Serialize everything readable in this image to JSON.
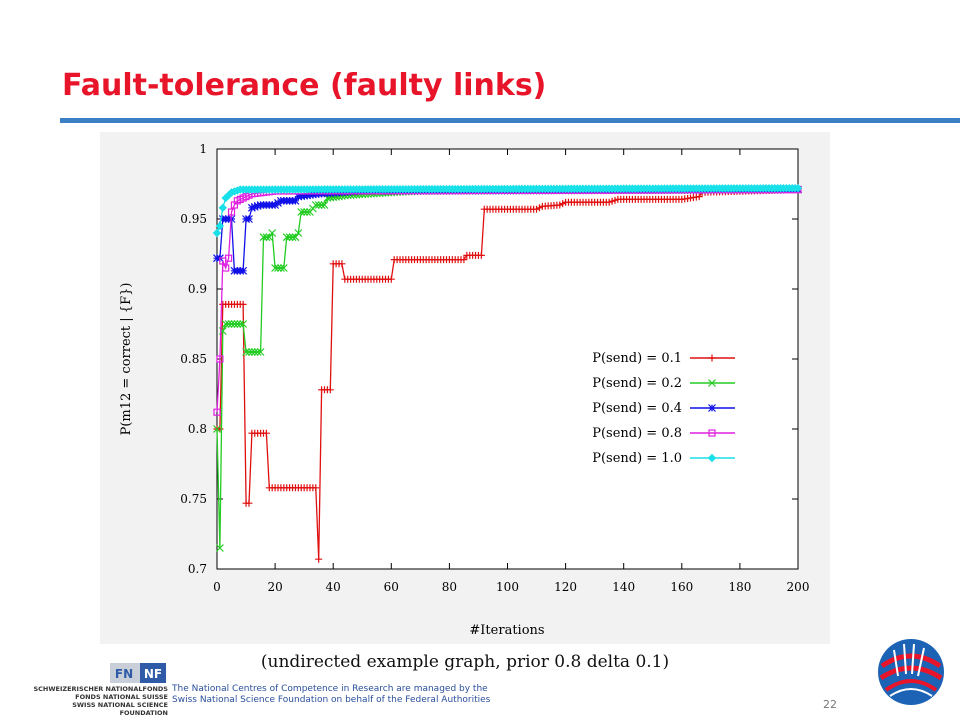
{
  "slide": {
    "title": "Fault-tolerance (faulty links)",
    "caption": "(undirected example graph, prior 0.8 delta 0.1)",
    "page_number": "22",
    "footer_line1": "The National Centres of Competence in Research are managed by the",
    "footer_line2": "Swiss National Science Foundation on behalf of the Federal Authorities",
    "foundation_lines": [
      "Schweizerischer Nationalfonds",
      "Fonds national suisse",
      "Swiss National Science Foundation"
    ],
    "logo_text_left": "FN",
    "logo_text_right": "NF",
    "accent_color": "#e8152a",
    "rule_color": "#3b7fc4"
  },
  "chart_data": {
    "type": "line",
    "xlabel": "#Iterations",
    "ylabel": "P(m12 = correct | {F})",
    "xlim": [
      0,
      200
    ],
    "ylim": [
      0.7,
      1.0
    ],
    "x_ticks": [
      "0",
      "20",
      "40",
      "60",
      "80",
      "100",
      "120",
      "140",
      "160",
      "180",
      "200"
    ],
    "y_ticks": [
      "0.7",
      "0.75",
      "0.8",
      "0.85",
      "0.9",
      "0.95",
      "1"
    ],
    "legend_position": "center-right",
    "grid": false,
    "series": [
      {
        "name": "P(send) = 0.1",
        "color": "#e01010",
        "marker": "+",
        "points": [
          [
            0,
            0.8
          ],
          [
            1,
            0.8
          ],
          [
            2,
            0.889
          ],
          [
            3,
            0.889
          ],
          [
            9,
            0.889
          ],
          [
            10,
            0.747
          ],
          [
            11,
            0.747
          ],
          [
            12,
            0.797
          ],
          [
            13,
            0.797
          ],
          [
            17,
            0.797
          ],
          [
            18,
            0.758
          ],
          [
            19,
            0.758
          ],
          [
            34,
            0.758
          ],
          [
            35,
            0.707
          ],
          [
            36,
            0.828
          ],
          [
            37,
            0.828
          ],
          [
            39,
            0.828
          ],
          [
            40,
            0.918
          ],
          [
            41,
            0.918
          ],
          [
            43,
            0.918
          ],
          [
            44,
            0.907
          ],
          [
            45,
            0.907
          ],
          [
            60,
            0.907
          ],
          [
            61,
            0.921
          ],
          [
            62,
            0.921
          ],
          [
            85,
            0.921
          ],
          [
            86,
            0.924
          ],
          [
            91,
            0.924
          ],
          [
            92,
            0.957
          ],
          [
            94,
            0.957
          ],
          [
            110,
            0.957
          ],
          [
            112,
            0.959
          ],
          [
            118,
            0.96
          ],
          [
            120,
            0.962
          ],
          [
            135,
            0.962
          ],
          [
            138,
            0.964
          ],
          [
            160,
            0.964
          ],
          [
            166,
            0.966
          ],
          [
            167,
            0.969
          ],
          [
            200,
            0.971
          ]
        ]
      },
      {
        "name": "P(send) = 0.2",
        "color": "#22cc22",
        "marker": "x",
        "points": [
          [
            0,
            0.8
          ],
          [
            1,
            0.715
          ],
          [
            2,
            0.87
          ],
          [
            3,
            0.875
          ],
          [
            9,
            0.875
          ],
          [
            10,
            0.855
          ],
          [
            15,
            0.855
          ],
          [
            16,
            0.937
          ],
          [
            18,
            0.937
          ],
          [
            19,
            0.94
          ],
          [
            20,
            0.915
          ],
          [
            23,
            0.915
          ],
          [
            24,
            0.937
          ],
          [
            27,
            0.937
          ],
          [
            28,
            0.94
          ],
          [
            29,
            0.955
          ],
          [
            32,
            0.955
          ],
          [
            34,
            0.96
          ],
          [
            37,
            0.96
          ],
          [
            38,
            0.965
          ],
          [
            45,
            0.967
          ],
          [
            60,
            0.969
          ],
          [
            70,
            0.97
          ],
          [
            200,
            0.971
          ]
        ]
      },
      {
        "name": "P(send) = 0.4",
        "color": "#1010e8",
        "marker": "*",
        "points": [
          [
            0,
            0.922
          ],
          [
            1,
            0.922
          ],
          [
            2,
            0.95
          ],
          [
            3,
            0.95
          ],
          [
            5,
            0.95
          ],
          [
            6,
            0.913
          ],
          [
            9,
            0.913
          ],
          [
            10,
            0.95
          ],
          [
            11,
            0.95
          ],
          [
            12,
            0.958
          ],
          [
            15,
            0.96
          ],
          [
            20,
            0.96
          ],
          [
            22,
            0.963
          ],
          [
            27,
            0.963
          ],
          [
            28,
            0.966
          ],
          [
            35,
            0.968
          ],
          [
            50,
            0.97
          ],
          [
            200,
            0.971
          ]
        ]
      },
      {
        "name": "P(send) = 0.8",
        "color": "#e020e0",
        "marker": "s",
        "points": [
          [
            0,
            0.812
          ],
          [
            1,
            0.85
          ],
          [
            2,
            0.92
          ],
          [
            3,
            0.915
          ],
          [
            4,
            0.922
          ],
          [
            5,
            0.955
          ],
          [
            6,
            0.96
          ],
          [
            7,
            0.963
          ],
          [
            9,
            0.965
          ],
          [
            12,
            0.968
          ],
          [
            20,
            0.97
          ],
          [
            200,
            0.971
          ]
        ]
      },
      {
        "name": "P(send) = 1.0",
        "color": "#18e0e8",
        "marker": "o",
        "points": [
          [
            0,
            0.94
          ],
          [
            1,
            0.945
          ],
          [
            2,
            0.958
          ],
          [
            3,
            0.965
          ],
          [
            5,
            0.969
          ],
          [
            8,
            0.971
          ],
          [
            200,
            0.972
          ]
        ]
      }
    ]
  }
}
